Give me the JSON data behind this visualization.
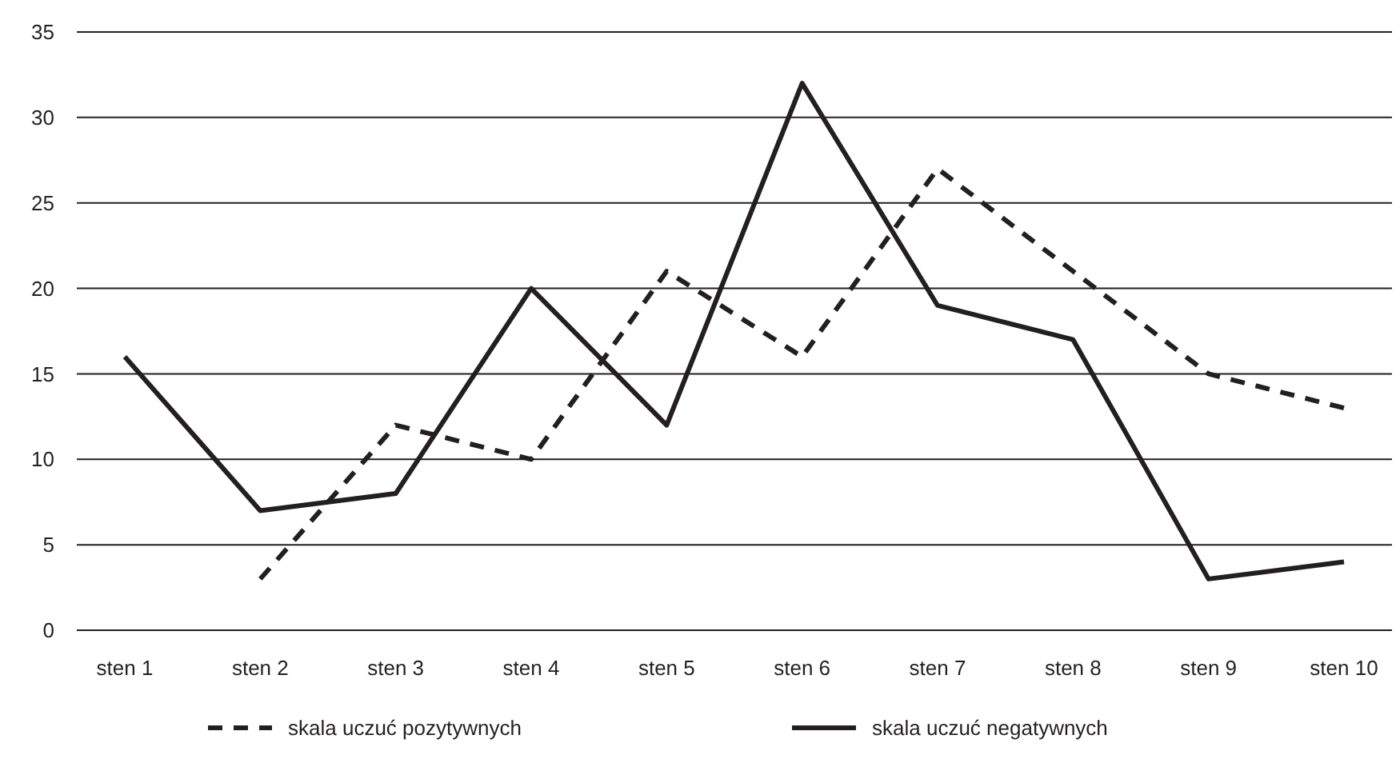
{
  "chart_data": {
    "type": "line",
    "categories": [
      "sten 1",
      "sten 2",
      "sten 3",
      "sten 4",
      "sten 5",
      "sten 6",
      "sten 7",
      "sten 8",
      "sten 9",
      "sten 10"
    ],
    "series": [
      {
        "name": "skala uczuć pozytywnych",
        "color": "#231f20",
        "line_style": "dashed",
        "values": [
          null,
          3,
          12,
          10,
          21,
          16,
          27,
          21,
          15,
          13
        ]
      },
      {
        "name": "skala uczuć negatywnych",
        "color": "#231f20",
        "line_style": "solid",
        "values": [
          16,
          7,
          8,
          20,
          12,
          32,
          19,
          17,
          3,
          4
        ]
      }
    ],
    "ylim": [
      0,
      35
    ],
    "yticks": [
      0,
      5,
      10,
      15,
      20,
      25,
      30,
      35
    ],
    "grid": "y",
    "legend": "bottom",
    "marker": "none"
  }
}
